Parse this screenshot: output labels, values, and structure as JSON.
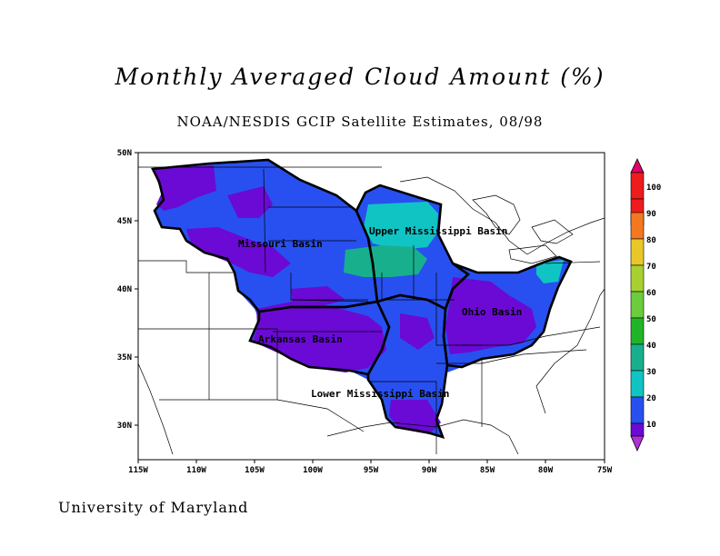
{
  "title": "Monthly Averaged Cloud Amount (%)",
  "subtitle": "NOAA/NESDIS GCIP Satellite Estimates, 08/98",
  "credit": "University of Maryland",
  "map": {
    "lon_labels": [
      "115W",
      "110W",
      "105W",
      "100W",
      "95W",
      "90W",
      "85W",
      "80W",
      "75W"
    ],
    "lat_labels": [
      "50N",
      "45N",
      "40N",
      "35N",
      "30N"
    ],
    "basins": [
      {
        "name": "Missouri Basin"
      },
      {
        "name": "Upper Mississippi Basin"
      },
      {
        "name": "Ohio Basin"
      },
      {
        "name": "Arkansas Basin"
      },
      {
        "name": "Lower Mississippi Basin"
      }
    ]
  },
  "colorbar": {
    "labels": [
      "100",
      "90",
      "80",
      "70",
      "60",
      "50",
      "40",
      "30",
      "20",
      "10"
    ],
    "colors": [
      "#e0006a",
      "#ee1c1c",
      "#f47820",
      "#e8c828",
      "#a8d030",
      "#6ccc3c",
      "#22b428",
      "#18b08c",
      "#10c4c4",
      "#2850f0",
      "#6a0ad4",
      "#b030d8"
    ]
  }
}
